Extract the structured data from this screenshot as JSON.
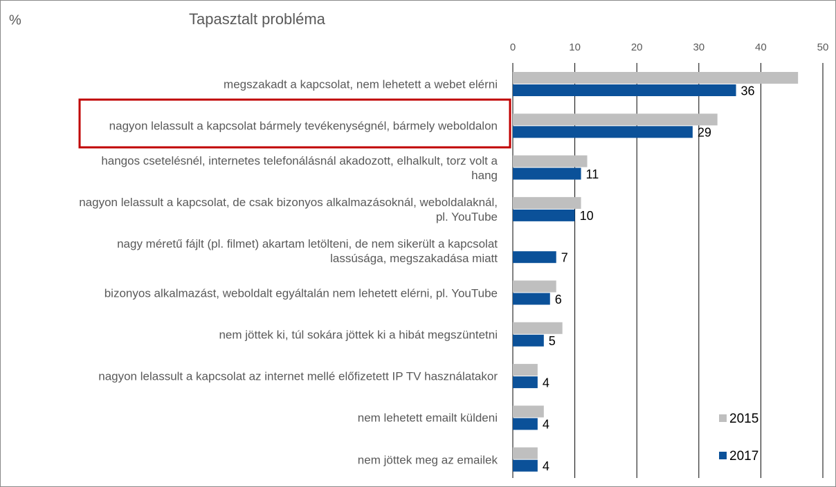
{
  "chart_data": {
    "type": "bar",
    "orientation": "horizontal",
    "unit_label": "%",
    "title": "Tapasztalt probléma",
    "categories": [
      "megszakadt a kapcsolat, nem lehetett a webet elérni",
      "nagyon lelassult a kapcsolat bármely tevékenységnél, bármely weboldalon",
      "hangos csetelésnél, internetes telefonálásnál akadozott, elhalkult, torz volt a hang",
      "nagyon lelassult a kapcsolat, de csak bizonyos alkalmazásoknál, weboldalaknál, pl. YouTube",
      "nagy méretű fájlt (pl. filmet) akartam letölteni, de nem sikerült a kapcsolat lassúsága, megszakadása miatt",
      "bizonyos alkalmazást, weboldalt egyáltalán nem lehetett elérni, pl. YouTube",
      "nem jöttek ki, túl sokára jöttek ki a hibát megszüntetni",
      "nagyon lelassult a kapcsolat az internet mellé előfizetett IP TV használatakor",
      "nem lehetett emailt küldeni",
      "nem jöttek meg az emailek"
    ],
    "series": [
      {
        "name": "2015",
        "color": "#bfbfbf",
        "values": [
          46,
          33,
          12,
          11,
          null,
          7,
          8,
          4,
          5,
          4
        ]
      },
      {
        "name": "2017",
        "color": "#0b5199",
        "values": [
          36,
          29,
          11,
          10,
          7,
          6,
          5,
          4,
          4,
          4
        ]
      }
    ],
    "xlim": [
      0,
      50
    ],
    "xticks": [
      0,
      10,
      20,
      30,
      40,
      50
    ],
    "grid": true,
    "legend": "lower right"
  }
}
